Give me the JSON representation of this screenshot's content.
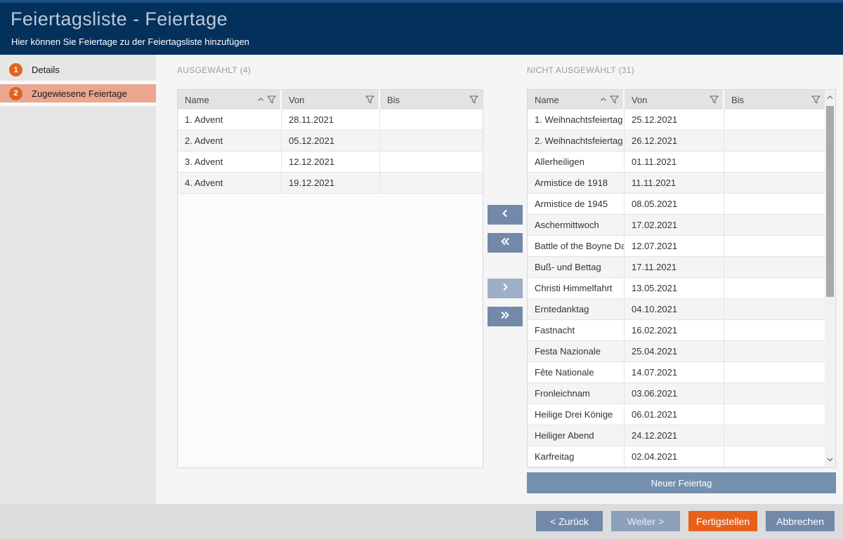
{
  "header": {
    "title": "Feiertagsliste - Feiertage",
    "subtitle": "Hier können Sie Feiertage zu der Feiertagsliste hinzufügen"
  },
  "sidebar": {
    "steps": [
      {
        "number": "1",
        "label": "Details",
        "active": false
      },
      {
        "number": "2",
        "label": "Zugewiesene Feiertage",
        "active": true
      }
    ]
  },
  "selected_panel": {
    "title": "AUSGEWÄHLT (4)",
    "columns": [
      "Name",
      "Von",
      "Bis"
    ],
    "rows": [
      {
        "name": "1. Advent",
        "von": "28.11.2021",
        "bis": ""
      },
      {
        "name": "2. Advent",
        "von": "05.12.2021",
        "bis": ""
      },
      {
        "name": "3. Advent",
        "von": "12.12.2021",
        "bis": ""
      },
      {
        "name": "4. Advent",
        "von": "19.12.2021",
        "bis": ""
      }
    ]
  },
  "unselected_panel": {
    "title": "NICHT AUSGEWÄHLT (31)",
    "columns": [
      "Name",
      "Von",
      "Bis"
    ],
    "rows": [
      {
        "name": "1. Weihnachtsfeiertag",
        "von": "25.12.2021",
        "bis": ""
      },
      {
        "name": "2. Weihnachtsfeiertag",
        "von": "26.12.2021",
        "bis": ""
      },
      {
        "name": "Allerheiligen",
        "von": "01.11.2021",
        "bis": ""
      },
      {
        "name": "Armistice de 1918",
        "von": "11.11.2021",
        "bis": ""
      },
      {
        "name": "Armistice de 1945",
        "von": "08.05.2021",
        "bis": ""
      },
      {
        "name": "Aschermittwoch",
        "von": "17.02.2021",
        "bis": ""
      },
      {
        "name": "Battle of the Boyne Da",
        "von": "12.07.2021",
        "bis": ""
      },
      {
        "name": "Buß- und Bettag",
        "von": "17.11.2021",
        "bis": ""
      },
      {
        "name": "Christi Himmelfahrt",
        "von": "13.05.2021",
        "bis": ""
      },
      {
        "name": "Erntedanktag",
        "von": "04.10.2021",
        "bis": ""
      },
      {
        "name": "Fastnacht",
        "von": "16.02.2021",
        "bis": ""
      },
      {
        "name": "Festa Nazionale",
        "von": "25.04.2021",
        "bis": ""
      },
      {
        "name": "Fête Nationale",
        "von": "14.07.2021",
        "bis": ""
      },
      {
        "name": "Fronleichnam",
        "von": "03.06.2021",
        "bis": ""
      },
      {
        "name": "Heilige Drei Könige",
        "von": "06.01.2021",
        "bis": ""
      },
      {
        "name": "Heiliger Abend",
        "von": "24.12.2021",
        "bis": ""
      },
      {
        "name": "Karfreitag",
        "von": "02.04.2021",
        "bis": ""
      }
    ],
    "new_button_label": "Neuer Feiertag"
  },
  "icons": {
    "sort_ascending": "chevron-up",
    "filter": "funnel",
    "move_left": "chevron-left",
    "move_all_left": "double-chevron-left",
    "move_right": "chevron-right",
    "move_all_right": "double-chevron-right",
    "scroll_up": "chevron-up",
    "scroll_down": "chevron-down"
  },
  "footer": {
    "back_label": "< Zurück",
    "next_label": "Weiter >",
    "finish_label": "Fertigstellen",
    "cancel_label": "Abbrechen"
  },
  "colors": {
    "header_navy": "#04305C",
    "header_navy_light": "#1A4E85",
    "active_step_salmon": "#EBA68F",
    "badge_orange": "#E2631E",
    "button_blue": "#7289A9",
    "button_blue_disabled": "#9DAEC6",
    "finish_orange": "#E8611A",
    "footer_gray": "#DCDCDC",
    "sidebar_gray": "#E6E6E6"
  }
}
